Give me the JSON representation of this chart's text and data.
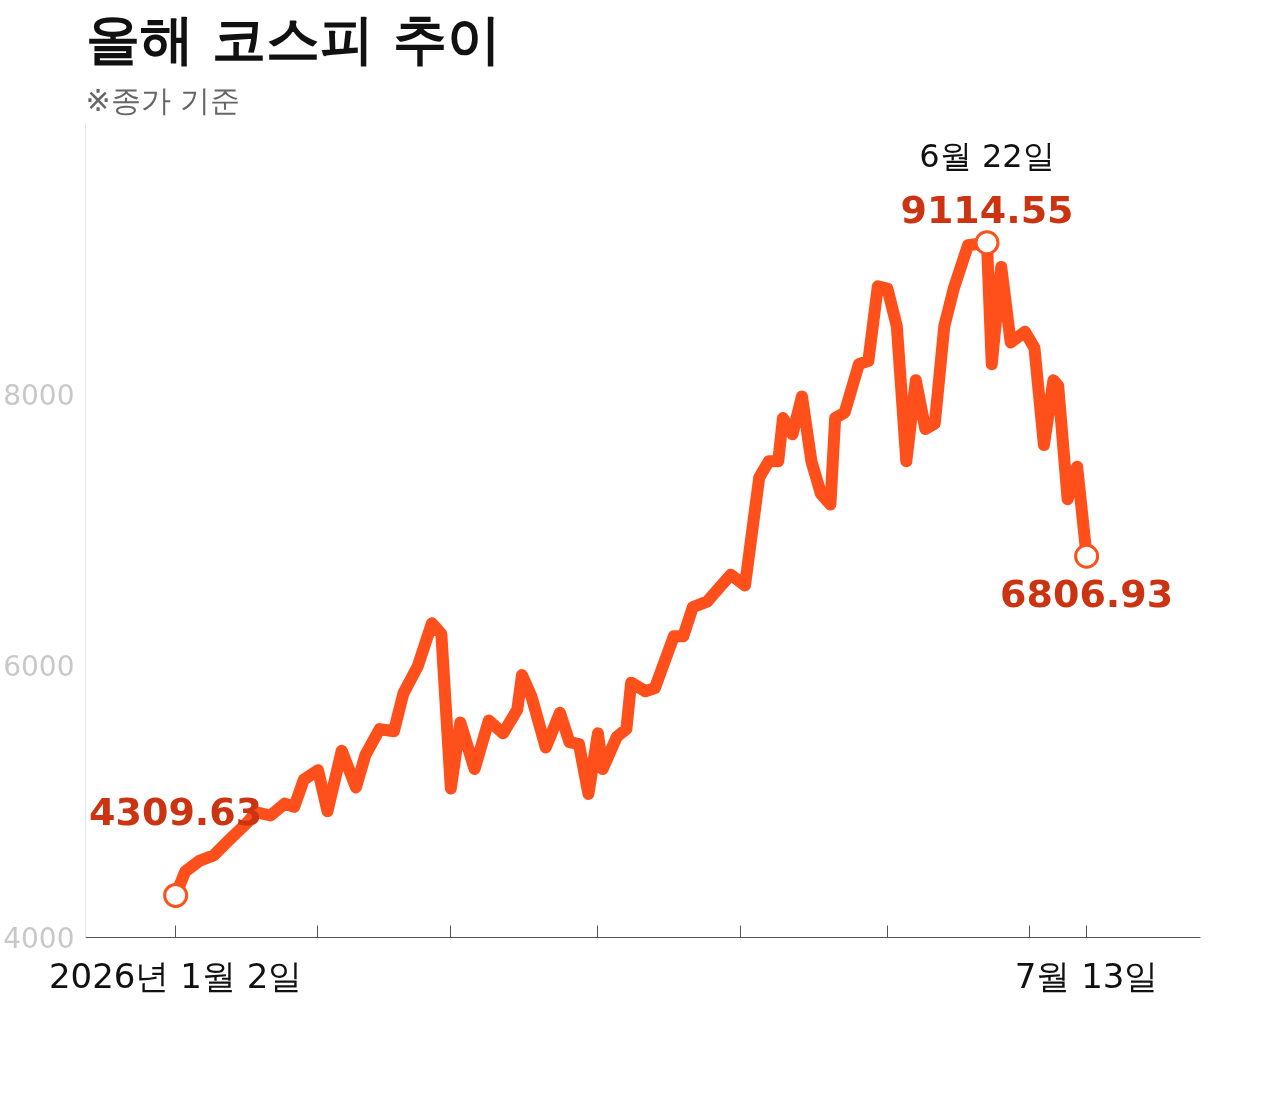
{
  "chart_data": {
    "type": "line",
    "title": "올해 코스피 추이",
    "subtitle": "※종가 기준",
    "x": [
      "2026-01-02",
      "2026-01-04",
      "2026-01-07",
      "2026-01-10",
      "2026-01-13",
      "2026-01-17",
      "2026-01-19",
      "2026-01-22",
      "2026-01-25",
      "2026-01-27",
      "2026-01-29",
      "2026-02-01",
      "2026-02-03",
      "2026-02-06",
      "2026-02-09",
      "2026-02-11",
      "2026-02-14",
      "2026-02-17",
      "2026-02-19",
      "2026-02-22",
      "2026-02-25",
      "2026-02-27",
      "2026-03-01",
      "2026-03-03",
      "2026-03-06",
      "2026-03-09",
      "2026-03-12",
      "2026-03-15",
      "2026-03-16",
      "2026-03-18",
      "2026-03-21",
      "2026-03-24",
      "2026-03-26",
      "2026-03-28",
      "2026-03-30",
      "2026-04-01",
      "2026-04-02",
      "2026-04-05",
      "2026-04-07",
      "2026-04-08",
      "2026-04-11",
      "2026-04-13",
      "2026-04-17",
      "2026-04-19",
      "2026-04-21",
      "2026-04-24",
      "2026-04-27",
      "2026-04-29",
      "2026-05-02",
      "2026-05-05",
      "2026-05-07",
      "2026-05-09",
      "2026-05-10",
      "2026-05-12",
      "2026-05-14",
      "2026-05-16",
      "2026-05-18",
      "2026-05-20",
      "2026-05-21",
      "2026-05-23",
      "2026-05-26",
      "2026-05-28",
      "2026-05-30",
      "2026-06-01",
      "2026-06-03",
      "2026-06-05",
      "2026-06-07",
      "2026-06-09",
      "2026-06-11",
      "2026-06-13",
      "2026-06-15",
      "2026-06-18",
      "2026-06-22",
      "2026-06-23",
      "2026-06-25",
      "2026-06-27",
      "2026-06-30",
      "2026-07-02",
      "2026-07-04",
      "2026-07-06",
      "2026-07-07",
      "2026-07-09",
      "2026-07-11",
      "2026-07-13"
    ],
    "series": [
      {
        "color": "#ff4f1a",
        "values": [
          4309.63,
          4485,
          4564,
          4604,
          4708,
          4843,
          4922,
          4898,
          4986,
          4962,
          5161,
          5232,
          4930,
          5375,
          5105,
          5344,
          5534,
          5518,
          5797,
          5995,
          6313,
          6234,
          5097,
          5582,
          5240,
          5598,
          5503,
          5677,
          5932,
          5773,
          5399,
          5654,
          5439,
          5423,
          5057,
          5503,
          5240,
          5479,
          5534,
          5876,
          5813,
          5836,
          6218,
          6218,
          6433,
          6472,
          6592,
          6671,
          6592,
          7387,
          7506,
          7506,
          7824,
          7705,
          7983,
          7506,
          7267,
          7188,
          7824,
          7864,
          8221,
          8245,
          8794,
          8778,
          8500,
          7506,
          8102,
          7744,
          7784,
          8500,
          8778,
          9096,
          9114.55,
          8221,
          8937,
          8380,
          8460,
          8341,
          7625,
          8102,
          8062,
          7227,
          7466,
          6806.93
        ],
        "value_labels": [
          "4309.63",
          null,
          null,
          null,
          null,
          null,
          null,
          null,
          null,
          null,
          null,
          null,
          null,
          null,
          null,
          null,
          null,
          null,
          null,
          null,
          null,
          null,
          null,
          null,
          null,
          null,
          null,
          null,
          null,
          null,
          null,
          null,
          null,
          null,
          null,
          null,
          null,
          null,
          null,
          null,
          null,
          null,
          null,
          null,
          null,
          null,
          null,
          null,
          null,
          null,
          null,
          null,
          null,
          null,
          null,
          null,
          null,
          null,
          null,
          null,
          null,
          null,
          null,
          null,
          null,
          null,
          null,
          null,
          null,
          null,
          null,
          null,
          "9114.55",
          null,
          null,
          null,
          null,
          null,
          null,
          null,
          null,
          null,
          null,
          "6806.93"
        ]
      }
    ],
    "annotations": [
      {
        "text": "6월 22일",
        "x": "2026-06-22",
        "y": 9114.55
      }
    ],
    "xlim": [
      "2025-12-14",
      "2026-08-06"
    ],
    "xticks": [
      {
        "value": "2026-01-02",
        "label": "2026년 1월 2일"
      },
      {
        "value": "2026-02-01",
        "label": null
      },
      {
        "value": "2026-03-01",
        "label": null
      },
      {
        "value": "2026-04-01",
        "label": null
      },
      {
        "value": "2026-05-01",
        "label": null
      },
      {
        "value": "2026-06-01",
        "label": null
      },
      {
        "value": "2026-07-01",
        "label": null
      },
      {
        "value": "2026-07-13",
        "label": "7월 13일"
      }
    ],
    "ylim": [
      4000,
      10000
    ],
    "yticks": [
      4000,
      6000,
      8000
    ],
    "grid": false,
    "marker": "none",
    "line_style": "solid"
  }
}
